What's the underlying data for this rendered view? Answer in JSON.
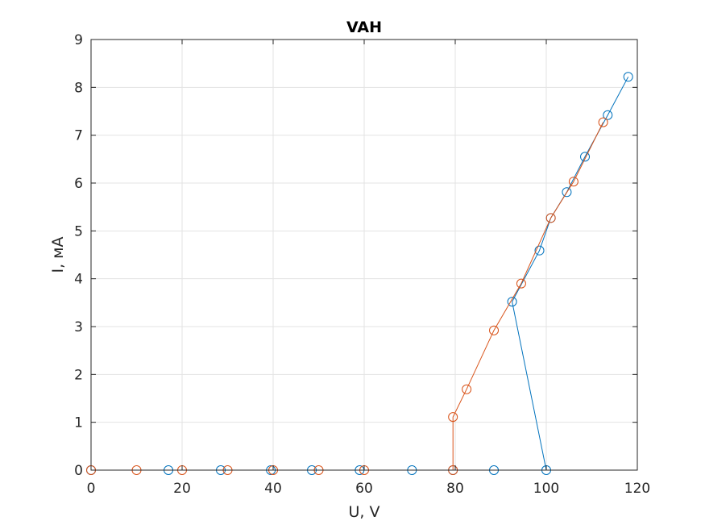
{
  "chart_data": {
    "type": "line",
    "title": "VAH",
    "xlabel": "U, V",
    "ylabel": "I, мА",
    "xlim": [
      0,
      120
    ],
    "ylim": [
      0,
      9
    ],
    "xticks": [
      "0",
      "20",
      "40",
      "60",
      "80",
      "100",
      "120"
    ],
    "yticks": [
      "0",
      "1",
      "2",
      "3",
      "4",
      "5",
      "6",
      "7",
      "8",
      "9"
    ],
    "grid": true,
    "marker": "circle",
    "series": [
      {
        "color": "#0072BD",
        "x": [
          0,
          17,
          28.5,
          39.5,
          48.5,
          59,
          70.5,
          79.5,
          88.5,
          100,
          92.5,
          98.5,
          101,
          104.5,
          108.5,
          113.5,
          118
        ],
        "y": [
          0,
          0,
          0,
          0,
          0,
          0,
          0,
          0,
          0,
          0,
          3.52,
          4.59,
          5.27,
          5.81,
          6.55,
          7.42,
          8.22
        ]
      },
      {
        "color": "#D95319",
        "x": [
          0,
          10,
          20,
          30,
          40,
          50,
          60,
          79.5,
          79.5,
          82.5,
          88.5,
          94.5,
          101,
          106,
          112.5
        ],
        "y": [
          0,
          0,
          0,
          0,
          0,
          0,
          0,
          0,
          1.11,
          1.69,
          2.92,
          3.9,
          5.27,
          6.03,
          7.27
        ]
      }
    ]
  }
}
